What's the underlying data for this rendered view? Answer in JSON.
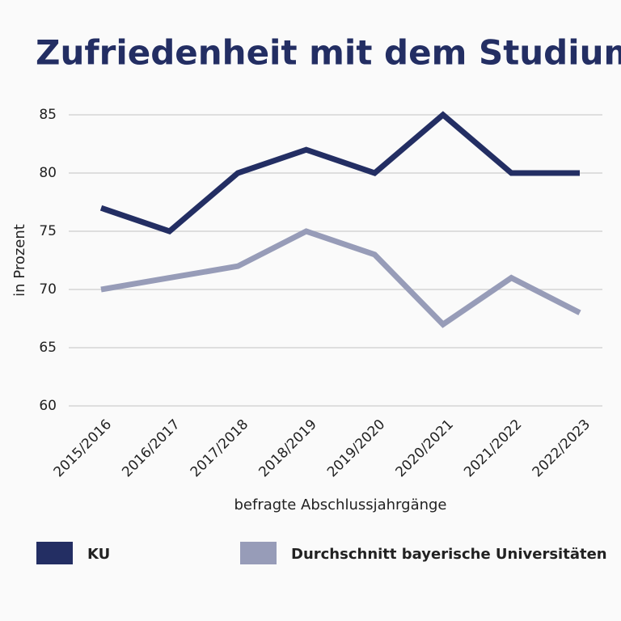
{
  "chart_data": {
    "type": "line",
    "title": "Zufriedenheit mit dem Studium",
    "x_label": "befragte Abschlussjahrgänge",
    "y_label": "in Prozent",
    "categories": [
      "2015/2016",
      "2016/2017",
      "2017/2018",
      "2018/2019",
      "2019/2020",
      "2020/2021",
      "2021/2022",
      "2022/2023"
    ],
    "series": [
      {
        "name": "KU",
        "color": "#232e63",
        "values": [
          77,
          75,
          80,
          82,
          80,
          85,
          80,
          80
        ]
      },
      {
        "name": "Durchschnitt bayerische Universitäten",
        "color": "#979cb8",
        "values": [
          70,
          71,
          72,
          75,
          73,
          67,
          71,
          68
        ]
      }
    ],
    "ylim": [
      60,
      85
    ],
    "yticks": [
      60,
      65,
      70,
      75,
      80,
      85
    ],
    "grid": true
  }
}
